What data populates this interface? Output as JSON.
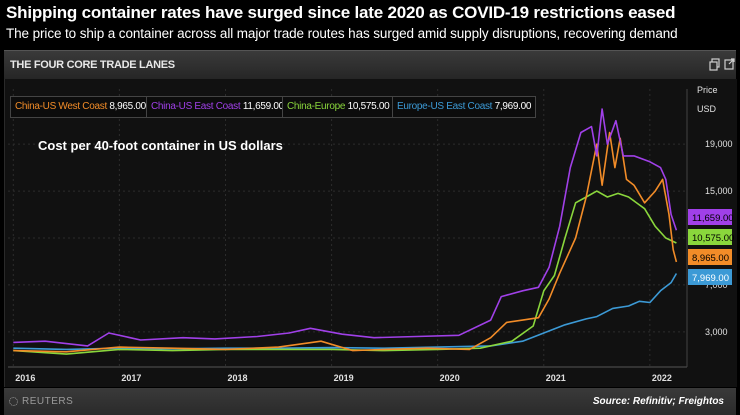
{
  "header": {
    "headline": "Shipping container rates have surged since late 2020 as COVID-19 restrictions eased",
    "subtitle": "The price to ship a container across all major trade routes has surged amid supply disruptions, recovering demand"
  },
  "panel": {
    "title": "THE FOUR CORE TRADE LANES",
    "icons": [
      "copy-icon",
      "expand-icon"
    ]
  },
  "annotation": "Cost per 40-foot container in US dollars",
  "footer": {
    "brand": "REUTERS",
    "source": "Source: Refinitiv; Freightos"
  },
  "legend": [
    {
      "name": "China-US West Coast",
      "value": "8,965.00",
      "color": "#f28c28"
    },
    {
      "name": "China-US East Coast",
      "value": "11,659.00",
      "color": "#a040e8"
    },
    {
      "name": "China-Europe",
      "value": "10,575.00",
      "color": "#8ad63c"
    },
    {
      "name": "Europe-US East Coast",
      "value": "7,969.00",
      "color": "#3c9ad6"
    }
  ],
  "chart_data": {
    "type": "line",
    "y_axis_title": "Price",
    "y_axis_unit": "USD",
    "y_ticks": [
      "3,000",
      "7,000",
      "11,000",
      "15,000",
      "19,000"
    ],
    "y_tick_values": [
      3000,
      7000,
      11000,
      15000,
      19000
    ],
    "x_tick_labels": [
      "2016",
      "2017",
      "2018",
      "2019",
      "2020",
      "2021",
      "2022"
    ],
    "x_tick_values": [
      2016,
      2017,
      2018,
      2019,
      2020,
      2021,
      2022
    ],
    "ylim": [
      0,
      22000
    ],
    "xlim": [
      2015.95,
      2022.35
    ],
    "grid": true,
    "last_value_labels": [
      "11,659.00",
      "10,575.00",
      "8,965.00",
      "7,969.00"
    ],
    "series": [
      {
        "name": "China-US West Coast",
        "color": "#f28c28",
        "points": [
          [
            2016.0,
            1400
          ],
          [
            2016.5,
            1300
          ],
          [
            2017.0,
            1700
          ],
          [
            2017.5,
            1600
          ],
          [
            2018.0,
            1500
          ],
          [
            2018.5,
            1700
          ],
          [
            2018.9,
            2200
          ],
          [
            2019.2,
            1400
          ],
          [
            2019.5,
            1500
          ],
          [
            2019.9,
            1600
          ],
          [
            2020.3,
            1500
          ],
          [
            2020.5,
            2500
          ],
          [
            2020.65,
            3800
          ],
          [
            2020.8,
            4000
          ],
          [
            2020.95,
            4200
          ],
          [
            2021.05,
            5800
          ],
          [
            2021.15,
            8000
          ],
          [
            2021.3,
            11000
          ],
          [
            2021.4,
            14500
          ],
          [
            2021.5,
            19000
          ],
          [
            2021.55,
            15500
          ],
          [
            2021.62,
            20000
          ],
          [
            2021.67,
            17000
          ],
          [
            2021.72,
            19500
          ],
          [
            2021.78,
            16000
          ],
          [
            2021.85,
            15500
          ],
          [
            2021.95,
            14000
          ],
          [
            2022.05,
            15000
          ],
          [
            2022.12,
            16000
          ],
          [
            2022.18,
            13000
          ],
          [
            2022.22,
            10000
          ],
          [
            2022.25,
            8965
          ]
        ]
      },
      {
        "name": "China-US East Coast",
        "color": "#a040e8",
        "points": [
          [
            2016.0,
            2100
          ],
          [
            2016.3,
            2200
          ],
          [
            2016.7,
            1800
          ],
          [
            2016.9,
            2900
          ],
          [
            2017.2,
            2300
          ],
          [
            2017.6,
            2500
          ],
          [
            2017.9,
            2400
          ],
          [
            2018.3,
            2600
          ],
          [
            2018.6,
            2900
          ],
          [
            2018.8,
            3300
          ],
          [
            2019.1,
            2800
          ],
          [
            2019.4,
            2500
          ],
          [
            2019.8,
            2600
          ],
          [
            2020.2,
            2700
          ],
          [
            2020.5,
            4000
          ],
          [
            2020.6,
            6000
          ],
          [
            2020.8,
            6500
          ],
          [
            2020.95,
            6800
          ],
          [
            2021.05,
            8500
          ],
          [
            2021.15,
            12000
          ],
          [
            2021.25,
            17000
          ],
          [
            2021.35,
            20000
          ],
          [
            2021.45,
            20500
          ],
          [
            2021.5,
            18000
          ],
          [
            2021.55,
            22000
          ],
          [
            2021.6,
            19000
          ],
          [
            2021.68,
            21000
          ],
          [
            2021.75,
            18000
          ],
          [
            2021.85,
            18000
          ],
          [
            2022.0,
            17500
          ],
          [
            2022.1,
            17000
          ],
          [
            2022.15,
            16000
          ],
          [
            2022.2,
            13000
          ],
          [
            2022.25,
            11659
          ]
        ]
      },
      {
        "name": "China-Europe",
        "color": "#8ad63c",
        "points": [
          [
            2016.0,
            1400
          ],
          [
            2016.5,
            1100
          ],
          [
            2017.0,
            1500
          ],
          [
            2017.5,
            1400
          ],
          [
            2018.0,
            1500
          ],
          [
            2018.5,
            1500
          ],
          [
            2019.0,
            1500
          ],
          [
            2019.5,
            1400
          ],
          [
            2020.0,
            1500
          ],
          [
            2020.4,
            1600
          ],
          [
            2020.7,
            2200
          ],
          [
            2020.9,
            3500
          ],
          [
            2021.0,
            6500
          ],
          [
            2021.1,
            7800
          ],
          [
            2021.2,
            11000
          ],
          [
            2021.3,
            14000
          ],
          [
            2021.4,
            14500
          ],
          [
            2021.5,
            15000
          ],
          [
            2021.6,
            14500
          ],
          [
            2021.7,
            14800
          ],
          [
            2021.8,
            14500
          ],
          [
            2021.95,
            13500
          ],
          [
            2022.05,
            12000
          ],
          [
            2022.15,
            11000
          ],
          [
            2022.25,
            10575
          ]
        ]
      },
      {
        "name": "Europe-US East Coast",
        "color": "#3c9ad6",
        "points": [
          [
            2016.0,
            1600
          ],
          [
            2016.5,
            1500
          ],
          [
            2017.0,
            1600
          ],
          [
            2017.5,
            1550
          ],
          [
            2018.0,
            1600
          ],
          [
            2018.5,
            1600
          ],
          [
            2019.0,
            1650
          ],
          [
            2019.5,
            1600
          ],
          [
            2020.0,
            1700
          ],
          [
            2020.5,
            1800
          ],
          [
            2020.8,
            2200
          ],
          [
            2021.0,
            2900
          ],
          [
            2021.2,
            3600
          ],
          [
            2021.4,
            4100
          ],
          [
            2021.5,
            4300
          ],
          [
            2021.65,
            5000
          ],
          [
            2021.8,
            5200
          ],
          [
            2021.9,
            5600
          ],
          [
            2022.0,
            5500
          ],
          [
            2022.1,
            6500
          ],
          [
            2022.2,
            7200
          ],
          [
            2022.25,
            7969
          ]
        ]
      }
    ]
  }
}
